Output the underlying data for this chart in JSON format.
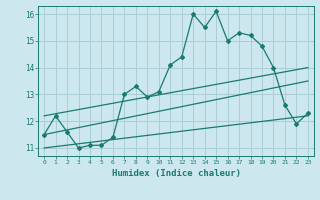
{
  "xlabel": "Humidex (Indice chaleur)",
  "ylabel": "",
  "bg_color": "#cce8ee",
  "line_color": "#1a7a6e",
  "grid_color": "#aacdd5",
  "xlim": [
    -0.5,
    23.5
  ],
  "ylim": [
    10.7,
    16.3
  ],
  "yticks": [
    11,
    12,
    13,
    14,
    15,
    16
  ],
  "xticks": [
    0,
    1,
    2,
    3,
    4,
    5,
    6,
    7,
    8,
    9,
    10,
    11,
    12,
    13,
    14,
    15,
    16,
    17,
    18,
    19,
    20,
    21,
    22,
    23
  ],
  "main_x": [
    0,
    1,
    2,
    3,
    4,
    5,
    6,
    7,
    8,
    9,
    10,
    11,
    12,
    13,
    14,
    15,
    16,
    17,
    18,
    19,
    20,
    21,
    22,
    23
  ],
  "main_y": [
    11.5,
    12.2,
    11.6,
    11.0,
    11.1,
    11.1,
    11.4,
    13.0,
    13.3,
    12.9,
    13.1,
    14.1,
    14.4,
    16.0,
    15.5,
    16.1,
    15.0,
    15.3,
    15.2,
    14.8,
    14.0,
    12.6,
    11.9,
    12.3
  ],
  "line1_x": [
    0,
    23
  ],
  "line1_y": [
    11.5,
    13.5
  ],
  "line2_x": [
    0,
    23
  ],
  "line2_y": [
    12.2,
    14.0
  ],
  "line3_x": [
    0,
    23
  ],
  "line3_y": [
    11.0,
    12.2
  ]
}
